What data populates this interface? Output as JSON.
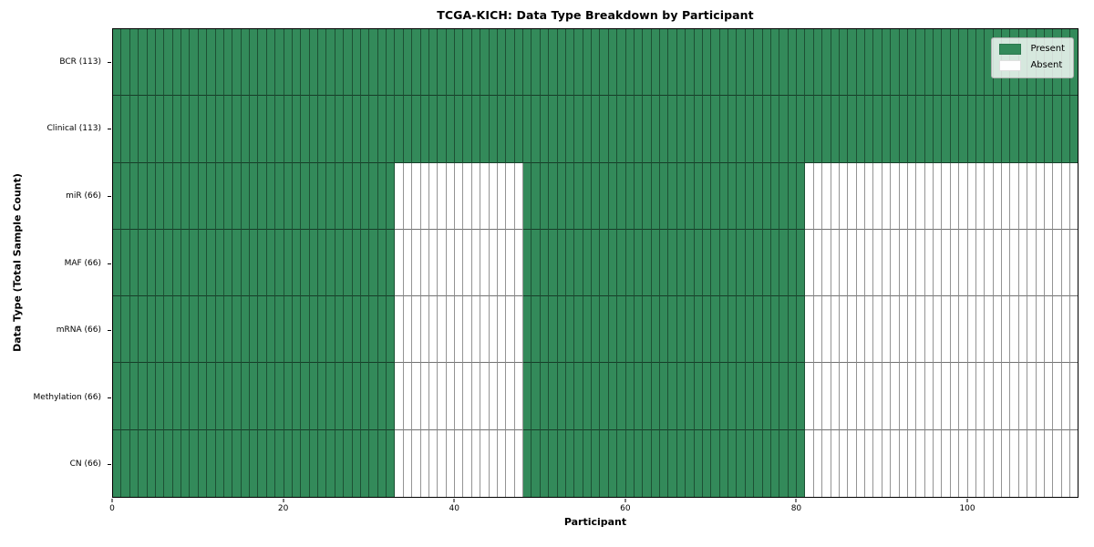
{
  "chart_data": {
    "type": "heatmap",
    "title": "TCGA-KICH: Data Type Breakdown by Participant",
    "xlabel": "Participant",
    "ylabel": "Data Type (Total Sample Count)",
    "n_participants": 113,
    "x_range": [
      0,
      113
    ],
    "x_ticks": [
      0,
      20,
      40,
      60,
      80,
      100
    ],
    "grid": true,
    "legend_position": "upper right",
    "colors": {
      "present": "#338a5a",
      "absent": "#ffffff",
      "cell_border": "rgba(0,0,0,0.42)",
      "row_border": "rgba(0,0,0,0.55)",
      "spine": "#000000"
    },
    "legend": [
      {
        "label": "Present",
        "color": "#338a5a"
      },
      {
        "label": "Absent",
        "color": "#ffffff"
      }
    ],
    "rows": [
      {
        "label": "BCR (113)",
        "data_type": "BCR",
        "total_samples": 113,
        "present_segments": [
          [
            0,
            113
          ]
        ],
        "absent_segments": []
      },
      {
        "label": "Clinical (113)",
        "data_type": "Clinical",
        "total_samples": 113,
        "present_segments": [
          [
            0,
            113
          ]
        ],
        "absent_segments": []
      },
      {
        "label": "miR (66)",
        "data_type": "miR",
        "total_samples": 66,
        "present_segments": [
          [
            0,
            33
          ],
          [
            48,
            81
          ]
        ],
        "absent_segments": [
          [
            33,
            48
          ],
          [
            81,
            113
          ]
        ]
      },
      {
        "label": "MAF (66)",
        "data_type": "MAF",
        "total_samples": 66,
        "present_segments": [
          [
            0,
            33
          ],
          [
            48,
            81
          ]
        ],
        "absent_segments": [
          [
            33,
            48
          ],
          [
            81,
            113
          ]
        ]
      },
      {
        "label": "mRNA (66)",
        "data_type": "mRNA",
        "total_samples": 66,
        "present_segments": [
          [
            0,
            33
          ],
          [
            48,
            81
          ]
        ],
        "absent_segments": [
          [
            33,
            48
          ],
          [
            81,
            113
          ]
        ]
      },
      {
        "label": "Methylation (66)",
        "data_type": "Methylation",
        "total_samples": 66,
        "present_segments": [
          [
            0,
            33
          ],
          [
            48,
            81
          ]
        ],
        "absent_segments": [
          [
            33,
            48
          ],
          [
            81,
            113
          ]
        ]
      },
      {
        "label": "CN (66)",
        "data_type": "CN",
        "total_samples": 66,
        "present_segments": [
          [
            0,
            33
          ],
          [
            48,
            81
          ]
        ],
        "absent_segments": [
          [
            33,
            48
          ],
          [
            81,
            113
          ]
        ]
      }
    ]
  }
}
